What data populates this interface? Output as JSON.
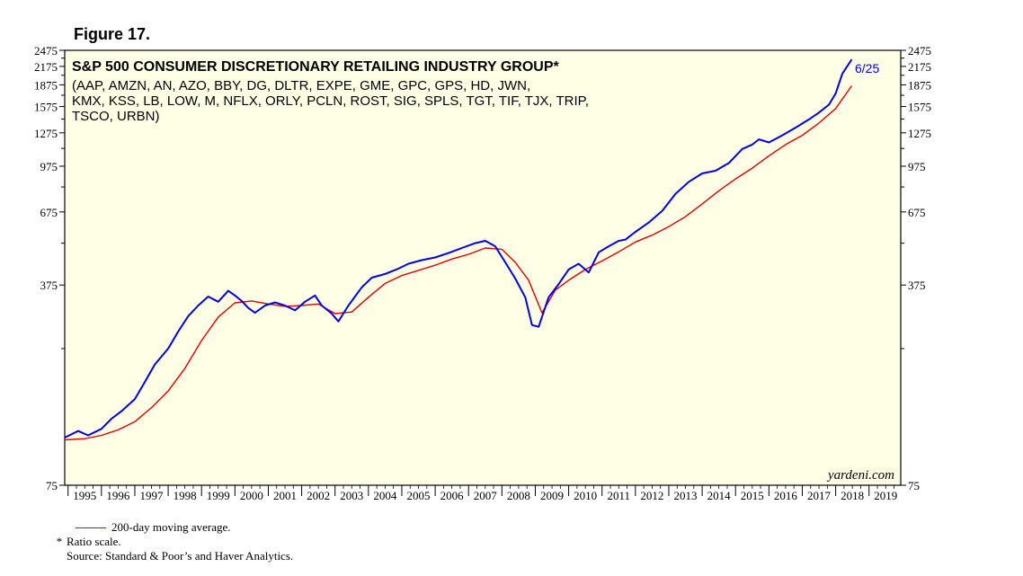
{
  "figure_label": "Figure 17.",
  "chart_data": {
    "type": "line",
    "title": "S&P 500 CONSUMER DISCRETIONARY RETAILING INDUSTRY GROUP*",
    "subtitle_lines": [
      "(AAP, AMZN, AN, AZO, BBY, DG, DLTR, EXPE, GME, GPC, GPS, HD, JWN,",
      "KMX, KSS, LB, LOW, M, NFLX, ORLY, PCLN, ROST, SIG, SPLS, TGT, TIF, TJX, TRIP,",
      "TSCO, URBN)"
    ],
    "x_tick_labels": [
      "1995",
      "1996",
      "1997",
      "1998",
      "1999",
      "2000",
      "2001",
      "2002",
      "2003",
      "2004",
      "2005",
      "2006",
      "2007",
      "2008",
      "2009",
      "2010",
      "2011",
      "2012",
      "2013",
      "2014",
      "2015",
      "2016",
      "2017",
      "2018",
      "2019"
    ],
    "xlim": [
      1994.9,
      2019.95
    ],
    "y_scale": "log",
    "ylim": [
      75,
      2475
    ],
    "y_ticks": [
      75,
      375,
      675,
      975,
      1275,
      1575,
      1875,
      2175,
      2475
    ],
    "y_tick_labels": [
      "75",
      "375",
      "675",
      "975",
      "1275",
      "1575",
      "1875",
      "2175",
      "2475"
    ],
    "annotation": "6/25",
    "watermark": "yardeni.com",
    "background_color": "#ffffe6",
    "series": [
      {
        "color": "#0000dd",
        "x": [
          1994.9,
          1995.3,
          1995.6,
          1996.0,
          1996.3,
          1996.6,
          1997.0,
          1997.3,
          1997.6,
          1998.0,
          1998.3,
          1998.6,
          1998.9,
          1999.2,
          1999.5,
          1999.8,
          2000.0,
          2000.2,
          2000.4,
          2000.6,
          2000.9,
          2001.2,
          2001.5,
          2001.8,
          2002.1,
          2002.4,
          2002.6,
          2002.9,
          2003.1,
          2003.4,
          2003.8,
          2004.1,
          2004.5,
          2004.9,
          2005.2,
          2005.6,
          2006.0,
          2006.4,
          2006.8,
          2007.2,
          2007.5,
          2007.8,
          2008.1,
          2008.4,
          2008.7,
          2008.9,
          2009.1,
          2009.4,
          2009.7,
          2010.0,
          2010.3,
          2010.6,
          2010.9,
          2011.2,
          2011.5,
          2011.7,
          2012.0,
          2012.4,
          2012.8,
          2013.2,
          2013.6,
          2014.0,
          2014.4,
          2014.8,
          2015.2,
          2015.5,
          2015.7,
          2016.0,
          2016.4,
          2016.8,
          2017.2,
          2017.5,
          2017.8,
          2018.0,
          2018.2,
          2018.48
        ],
        "y": [
          110,
          116,
          112,
          118,
          128,
          136,
          150,
          172,
          198,
          225,
          258,
          292,
          318,
          342,
          328,
          358,
          345,
          330,
          312,
          300,
          318,
          326,
          318,
          306,
          328,
          345,
          318,
          298,
          280,
          318,
          368,
          398,
          410,
          428,
          445,
          458,
          468,
          485,
          505,
          525,
          535,
          512,
          450,
          395,
          340,
          272,
          268,
          340,
          378,
          425,
          445,
          415,
          488,
          512,
          535,
          540,
          575,
          620,
          680,
          780,
          860,
          920,
          940,
          1000,
          1120,
          1160,
          1210,
          1180,
          1250,
          1330,
          1420,
          1500,
          1600,
          1750,
          2050,
          2300
        ]
      },
      {
        "name": "200-day moving average.",
        "color": "#e00000",
        "x": [
          1994.9,
          1995.5,
          1996.0,
          1996.5,
          1997.0,
          1997.5,
          1998.0,
          1998.5,
          1999.0,
          1999.5,
          2000.0,
          2000.5,
          2001.0,
          2001.5,
          2002.0,
          2002.5,
          2003.0,
          2003.5,
          2004.0,
          2004.5,
          2005.0,
          2005.5,
          2006.0,
          2006.5,
          2007.0,
          2007.5,
          2008.0,
          2008.4,
          2008.8,
          2009.2,
          2009.6,
          2010.0,
          2010.5,
          2011.0,
          2011.5,
          2012.0,
          2012.5,
          2013.0,
          2013.5,
          2014.0,
          2014.5,
          2015.0,
          2015.5,
          2016.0,
          2016.5,
          2017.0,
          2017.5,
          2018.0,
          2018.48
        ],
        "y": [
          108,
          109,
          112,
          117,
          125,
          140,
          160,
          192,
          240,
          290,
          325,
          330,
          322,
          316,
          318,
          322,
          298,
          302,
          340,
          380,
          405,
          422,
          440,
          462,
          480,
          505,
          500,
          450,
          390,
          300,
          360,
          390,
          425,
          455,
          490,
          530,
          560,
          600,
          650,
          720,
          800,
          880,
          960,
          1060,
          1160,
          1250,
          1380,
          1550,
          1860
        ]
      }
    ]
  },
  "notes": {
    "legend_label": "200-day moving average.",
    "ratio_marker": "*",
    "ratio_text": "Ratio scale.",
    "source": "Source: Standard & Poor’s and Haver Analytics."
  }
}
